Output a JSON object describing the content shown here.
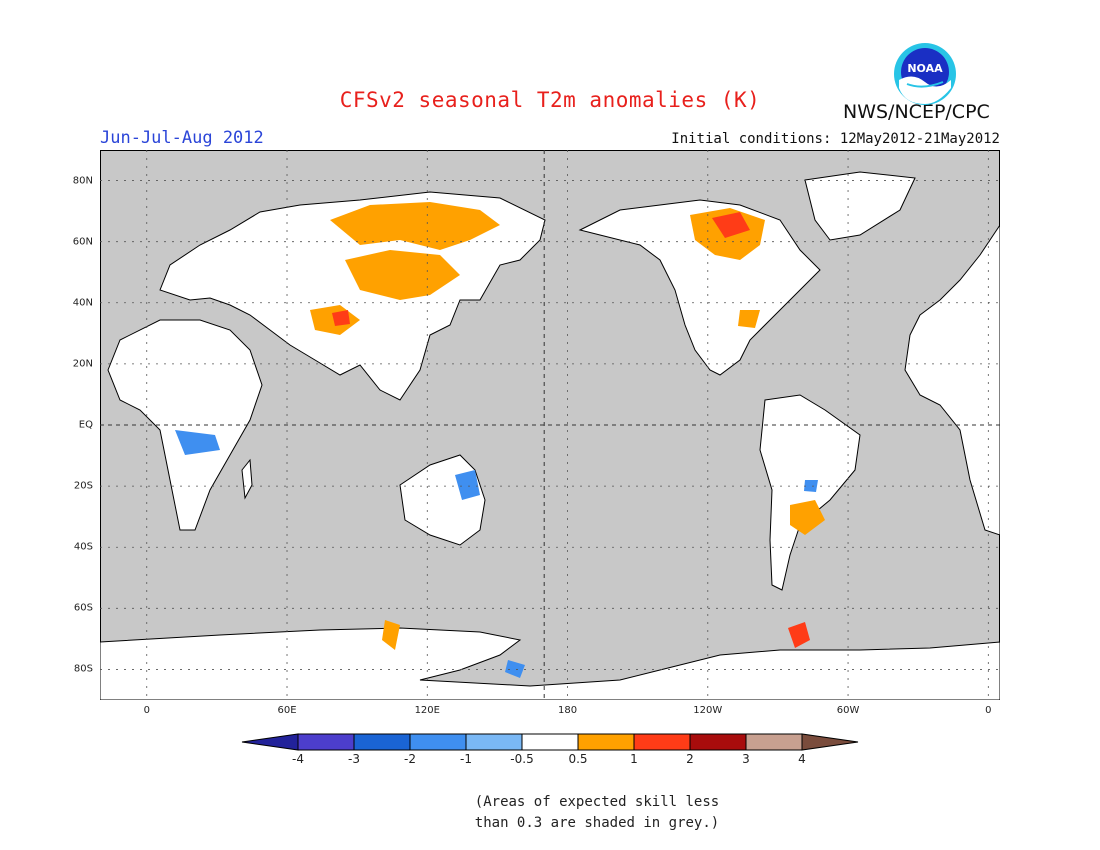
{
  "title": "CFSv2 seasonal T2m anomalies (K)",
  "season": "Jun-Jul-Aug 2012",
  "initial_conditions": "Initial conditions: 12May2012-21May2012",
  "agency": "NWS/NCEP/CPC",
  "logo_text": "NOAA",
  "map": {
    "lon_ticks": [
      {
        "lon": 0,
        "label": "0"
      },
      {
        "lon": 60,
        "label": "60E"
      },
      {
        "lon": 120,
        "label": "120E"
      },
      {
        "lon": 180,
        "label": "180"
      },
      {
        "lon": 240,
        "label": "120W"
      },
      {
        "lon": 300,
        "label": "60W"
      },
      {
        "lon": 360,
        "label": "0"
      }
    ],
    "lat_ticks": [
      {
        "lat": 80,
        "label": "80N"
      },
      {
        "lat": 60,
        "label": "60N"
      },
      {
        "lat": 40,
        "label": "40N"
      },
      {
        "lat": 20,
        "label": "20N"
      },
      {
        "lat": 0,
        "label": "EQ"
      },
      {
        "lat": -20,
        "label": "20S"
      },
      {
        "lat": -40,
        "label": "40S"
      },
      {
        "lat": -60,
        "label": "60S"
      },
      {
        "lat": -80,
        "label": "80S"
      }
    ],
    "lon_range": [
      -20,
      365
    ],
    "lat_range": [
      -90,
      90
    ],
    "colors": {
      "background": "#c8c8c8",
      "land_neutral": "#ffffff",
      "coast": "#000000"
    }
  },
  "colorbar": {
    "ticks": [
      "-4",
      "-3",
      "-2",
      "-1",
      "-0.5",
      "0.5",
      "1",
      "2",
      "3",
      "4"
    ],
    "colors": [
      "#22229a",
      "#4c3ecc",
      "#1a64d4",
      "#3f8ff0",
      "#7ab8f5",
      "#ffffff",
      "#ffa100",
      "#ff3c17",
      "#a80c0c",
      "#c8a090",
      "#7a4c3c"
    ]
  },
  "note_lines": [
    "(Areas of expected skill less",
    "than 0.3 are shaded in grey.)"
  ]
}
